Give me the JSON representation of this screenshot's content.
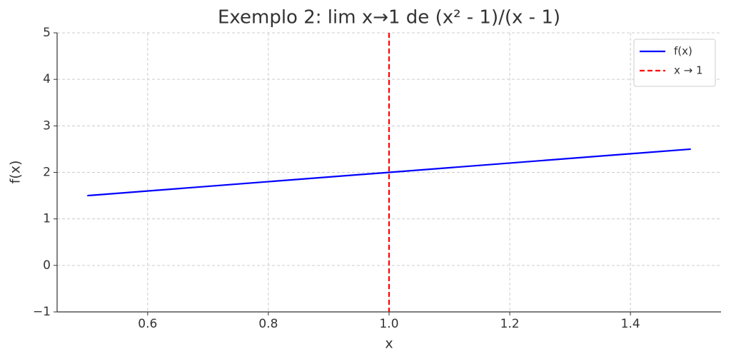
{
  "chart_data": {
    "type": "line",
    "title": "Exemplo 2: lim x→1 de (x² - 1)/(x - 1)",
    "xlabel": "x",
    "ylabel": "f(x)",
    "x": [
      0.5,
      1.5
    ],
    "series": [
      {
        "name": "f(x)",
        "color": "#0000ff",
        "values": [
          1.5,
          2.5
        ]
      }
    ],
    "vlines": [
      {
        "name": "x → 1",
        "color": "#ff0000",
        "x": 1,
        "style": "dashed"
      }
    ],
    "xlim": [
      0.45,
      1.55
    ],
    "ylim": [
      -1,
      5
    ],
    "xticks": [
      0.6,
      0.8,
      {
        "value": 1,
        "label": "1.0"
      },
      1.2,
      1.4
    ],
    "yticks": [
      {
        "value": -1,
        "label": "−1"
      },
      0,
      1,
      2,
      3,
      4,
      5
    ],
    "grid": true,
    "legend": "upper right"
  }
}
